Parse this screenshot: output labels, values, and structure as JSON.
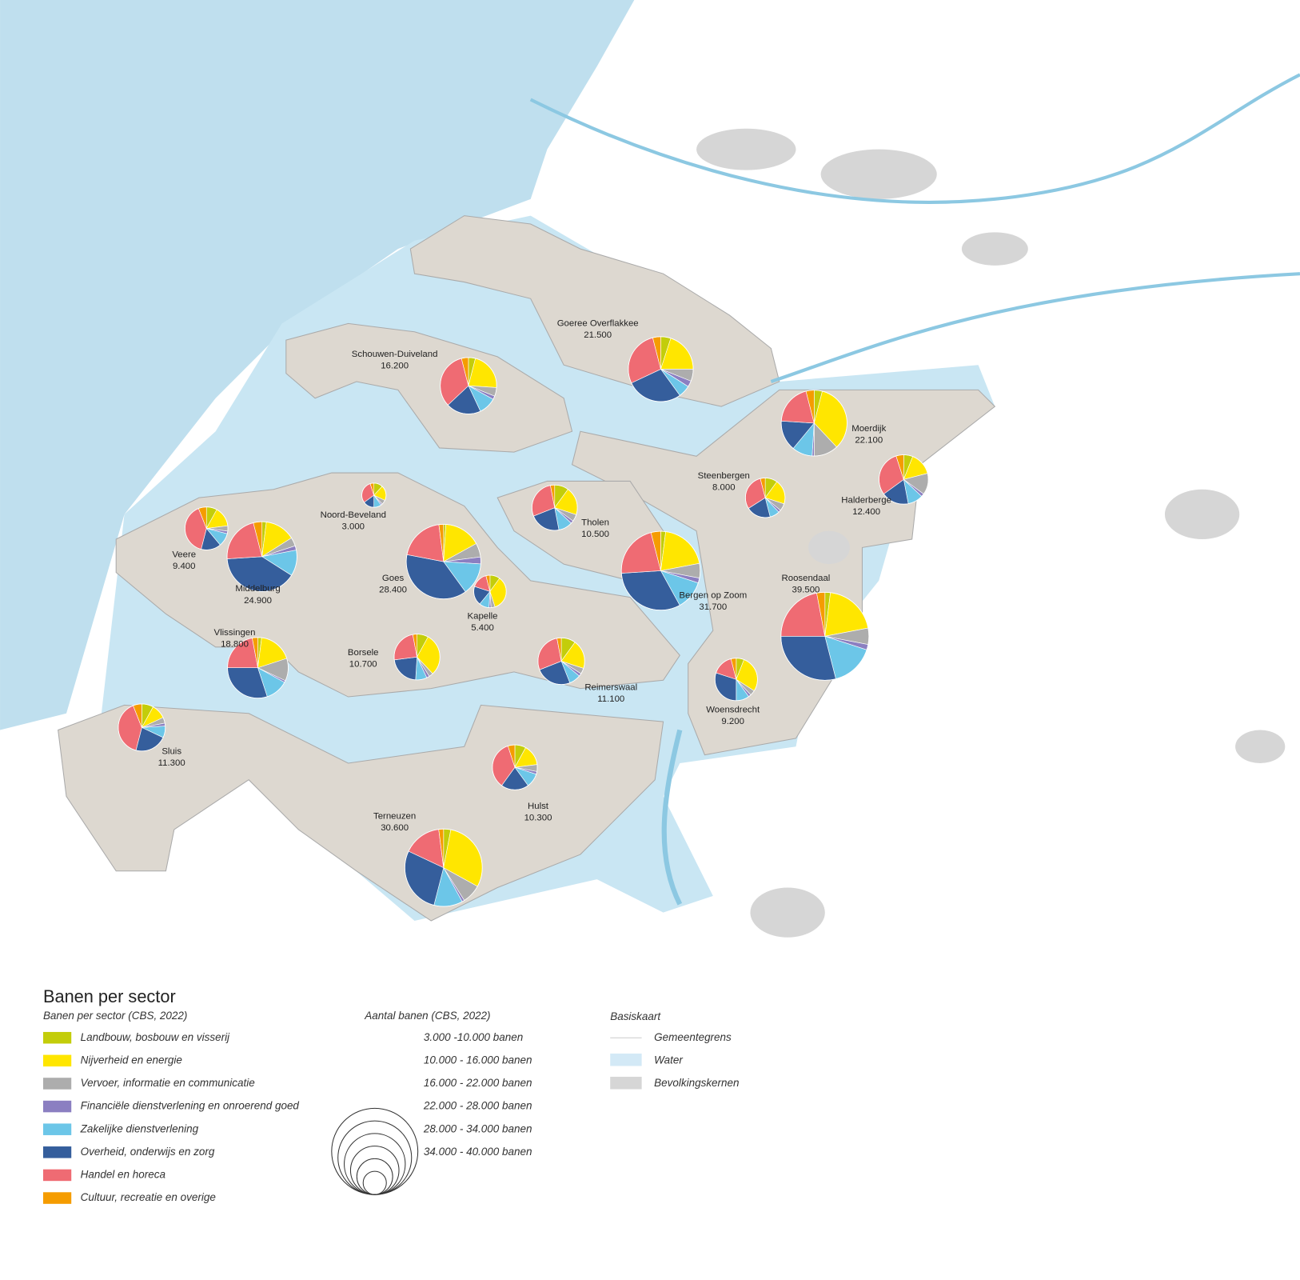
{
  "map": {
    "municipalities": [
      {
        "name": "Schouwen-Duiveland",
        "jobs": {
          "value": 16200,
          "label": "16.200"
        },
        "shares": [
          4,
          22,
          5,
          2,
          10,
          20,
          33,
          4
        ]
      },
      {
        "name": "Goeree Overflakkee",
        "jobs": {
          "value": 21500,
          "label": "21.500"
        },
        "shares": [
          5,
          20,
          6,
          3,
          6,
          28,
          28,
          4
        ]
      },
      {
        "name": "Moerdijk",
        "jobs": {
          "value": 22100,
          "label": "22.100"
        },
        "shares": [
          4,
          34,
          12,
          1,
          10,
          15,
          20,
          4
        ]
      },
      {
        "name": "Steenbergen",
        "jobs": {
          "value": 8000,
          "label": "8.000"
        },
        "shares": [
          10,
          20,
          6,
          2,
          8,
          20,
          30,
          4
        ]
      },
      {
        "name": "Halderberge",
        "jobs": {
          "value": 12400,
          "label": "12.400"
        },
        "shares": [
          6,
          15,
          14,
          2,
          10,
          18,
          30,
          5
        ]
      },
      {
        "name": "Noord-Beveland",
        "jobs": {
          "value": 3000,
          "label": "3.000"
        },
        "shares": [
          12,
          20,
          6,
          2,
          10,
          15,
          30,
          5
        ]
      },
      {
        "name": "Tholen",
        "jobs": {
          "value": 10500,
          "label": "10.500"
        },
        "shares": [
          10,
          20,
          5,
          2,
          10,
          22,
          28,
          3
        ]
      },
      {
        "name": "Veere",
        "jobs": {
          "value": 9400,
          "label": "9.400"
        },
        "shares": [
          8,
          15,
          4,
          2,
          10,
          15,
          40,
          6
        ]
      },
      {
        "name": "Middelburg",
        "jobs": {
          "value": 24900,
          "label": "24.900"
        },
        "shares": [
          2,
          14,
          4,
          2,
          12,
          40,
          22,
          4
        ]
      },
      {
        "name": "Goes",
        "jobs": {
          "value": 28400,
          "label": "28.400"
        },
        "shares": [
          1,
          16,
          6,
          3,
          14,
          38,
          20,
          2
        ]
      },
      {
        "name": "Bergen op Zoom",
        "jobs": {
          "value": 31700,
          "label": "31.700"
        },
        "shares": [
          2,
          20,
          6,
          2,
          12,
          32,
          22,
          4
        ]
      },
      {
        "name": "Roosendaal",
        "jobs": {
          "value": 39500,
          "label": "39.500"
        },
        "shares": [
          2,
          20,
          6,
          2,
          16,
          29,
          22,
          3
        ]
      },
      {
        "name": "Kapelle",
        "jobs": {
          "value": 5400,
          "label": "5.400"
        },
        "shares": [
          10,
          35,
          4,
          2,
          10,
          19,
          16,
          4
        ]
      },
      {
        "name": "Vlissingen",
        "jobs": {
          "value": 18800,
          "label": "18.800"
        },
        "shares": [
          2,
          18,
          12,
          1,
          12,
          30,
          22,
          3
        ]
      },
      {
        "name": "Borsele",
        "jobs": {
          "value": 10700,
          "label": "10.700"
        },
        "shares": [
          8,
          30,
          3,
          2,
          8,
          22,
          24,
          3
        ]
      },
      {
        "name": "Reimerswaal",
        "jobs": {
          "value": 11100,
          "label": "11.100"
        },
        "shares": [
          10,
          20,
          4,
          2,
          8,
          25,
          28,
          3
        ]
      },
      {
        "name": "Woensdrecht",
        "jobs": {
          "value": 9200,
          "label": "9.200"
        },
        "shares": [
          6,
          28,
          4,
          2,
          10,
          30,
          16,
          4
        ]
      },
      {
        "name": "Sluis",
        "jobs": {
          "value": 11300,
          "label": "11.300"
        },
        "shares": [
          8,
          10,
          4,
          2,
          8,
          22,
          40,
          6
        ]
      },
      {
        "name": "Hulst",
        "jobs": {
          "value": 10300,
          "label": "10.300"
        },
        "shares": [
          8,
          15,
          5,
          2,
          10,
          20,
          35,
          5
        ]
      },
      {
        "name": "Terneuzen",
        "jobs": {
          "value": 30600,
          "label": "30.600"
        },
        "shares": [
          3,
          30,
          8,
          1,
          12,
          28,
          16,
          2
        ]
      }
    ]
  },
  "legend": {
    "title": "Banen per sector",
    "subtitle": "Banen per sector (CBS, 2022)",
    "sectors": [
      {
        "name": "Landbouw, bosbouw en visserij",
        "color": "#c3cd0a"
      },
      {
        "name": "Nijverheid en energie",
        "color": "#ffe600"
      },
      {
        "name": "Vervoer, informatie en communicatie",
        "color": "#adadad"
      },
      {
        "name": "Financiële dienstverlening en onroerend goed",
        "color": "#8b7fc1"
      },
      {
        "name": "Zakelijke dienstverlening",
        "color": "#6cc6e8"
      },
      {
        "name": "Overheid, onderwijs en zorg",
        "color": "#355e9c"
      },
      {
        "name": "Handel en horeca",
        "color": "#ef6b73"
      },
      {
        "name": "Cultuur, recreatie en overige",
        "color": "#f59c00"
      }
    ],
    "size_title": "Aantal banen (CBS, 2022)",
    "size_classes": [
      "3.000 -10.000 banen",
      "10.000 - 16.000 banen",
      "16.000 - 22.000 banen",
      "22.000 - 28.000 banen",
      "28.000 - 34.000 banen",
      "34.000 - 40.000 banen"
    ],
    "base_title": "Basiskaart",
    "base_items": [
      "Gemeentegrens",
      "Water",
      "Bevolkingskernen"
    ]
  }
}
